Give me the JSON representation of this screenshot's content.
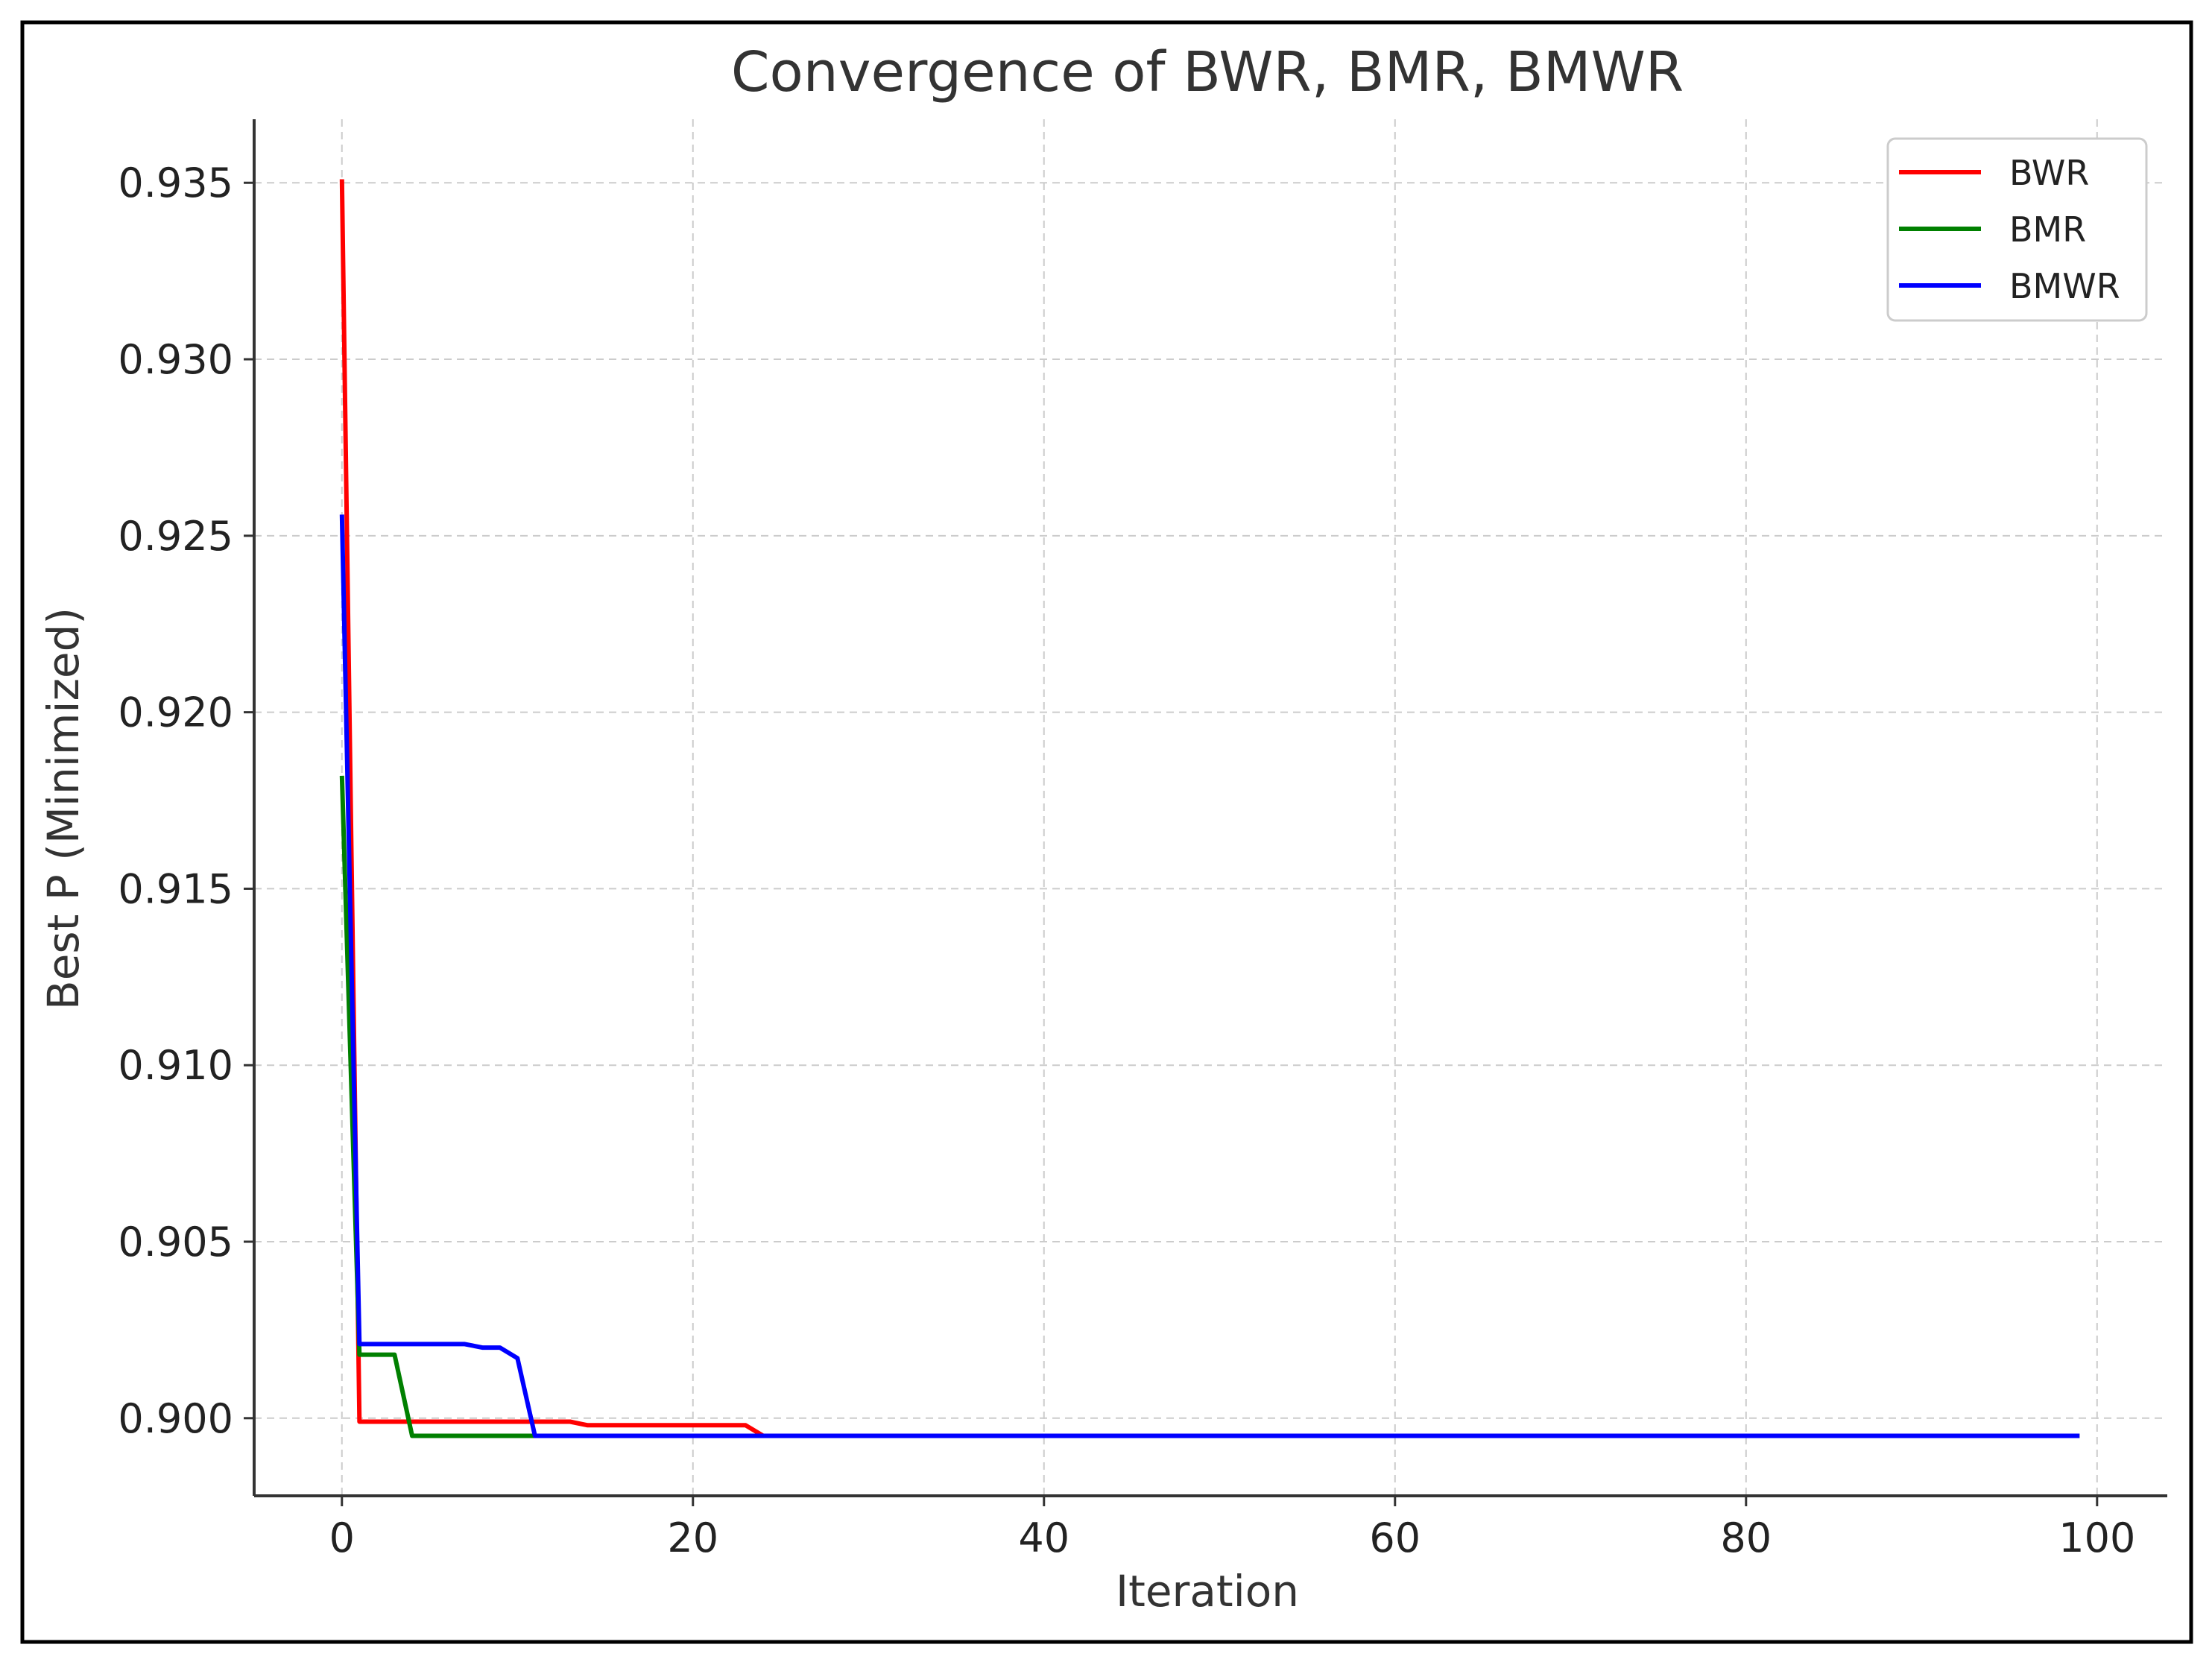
{
  "chart_data": {
    "type": "line",
    "title": "Convergence of BWR, BMR, BMWR",
    "xlabel": "Iteration",
    "ylabel": "Best P (Minimized)",
    "xlim": [
      -5,
      104
    ],
    "ylim": [
      0.8978,
      0.9368
    ],
    "x_ticks": [
      0,
      20,
      40,
      60,
      80,
      100
    ],
    "y_ticks": [
      0.9,
      0.905,
      0.91,
      0.915,
      0.92,
      0.925,
      0.93,
      0.935
    ],
    "x_tick_labels": [
      "0",
      "20",
      "40",
      "60",
      "80",
      "100"
    ],
    "y_tick_labels": [
      "0.900",
      "0.905",
      "0.910",
      "0.915",
      "0.920",
      "0.925",
      "0.930",
      "0.935"
    ],
    "grid": true,
    "legend_position": "top-right",
    "series": [
      {
        "name": "BWR",
        "color": "#ff0000",
        "points": [
          [
            0,
            0.9351
          ],
          [
            1,
            0.8999
          ],
          [
            8,
            0.8999
          ],
          [
            9,
            0.8999
          ],
          [
            13,
            0.8999
          ],
          [
            14,
            0.8998
          ],
          [
            23,
            0.8998
          ],
          [
            24,
            0.8995
          ],
          [
            99,
            0.8995
          ]
        ]
      },
      {
        "name": "BMR",
        "color": "#008000",
        "points": [
          [
            0,
            0.9182
          ],
          [
            1,
            0.9018
          ],
          [
            3,
            0.9018
          ],
          [
            4,
            0.8995
          ],
          [
            99,
            0.8995
          ]
        ]
      },
      {
        "name": "BMWR",
        "color": "#0000ff",
        "points": [
          [
            0,
            0.9256
          ],
          [
            1,
            0.9021
          ],
          [
            7,
            0.9021
          ],
          [
            8,
            0.902
          ],
          [
            9,
            0.902
          ],
          [
            10,
            0.9017
          ],
          [
            11,
            0.8995
          ],
          [
            99,
            0.8995
          ]
        ]
      }
    ]
  }
}
